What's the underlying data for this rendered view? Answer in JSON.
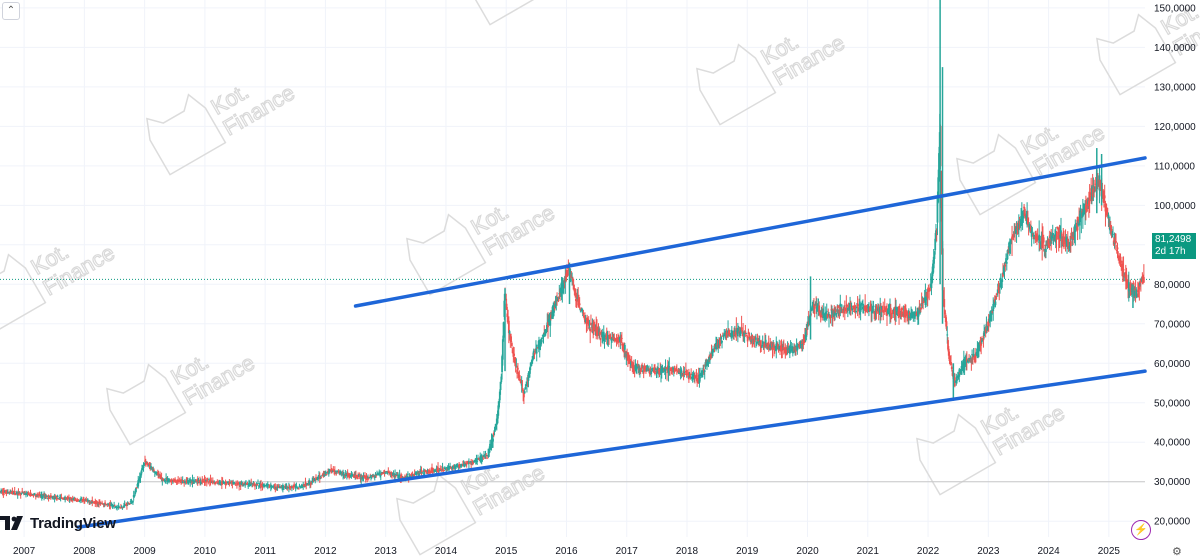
{
  "branding": {
    "logo_text": "TradingView",
    "watermark_text": "Kot. Finance"
  },
  "price_badge": {
    "value": "81,2498",
    "countdown": "2d 17h",
    "color": "#0b9981"
  },
  "colors": {
    "up": "#26a69a",
    "down": "#ef5350",
    "trendline": "#1e66d8",
    "grid": "#f0f3fa"
  },
  "icons": {
    "collapse": "chevron-up-icon",
    "alert": "lightning-icon",
    "settings": "gear-icon"
  },
  "chart_data": {
    "type": "candlestick",
    "title": "",
    "xlabel": "",
    "ylabel": "",
    "x_ticks": [
      "2007",
      "2008",
      "2009",
      "2010",
      "2011",
      "2012",
      "2013",
      "2014",
      "2015",
      "2016",
      "2017",
      "2018",
      "2019",
      "2020",
      "2021",
      "2022",
      "2023",
      "2024",
      "2025"
    ],
    "y_ticks": [
      "20,0000",
      "30,0000",
      "40,0000",
      "50,0000",
      "60,0000",
      "70,0000",
      "80,0000",
      "90,0000",
      "100,0000",
      "110,0000",
      "120,0000",
      "130,0000",
      "140,0000",
      "150,0000"
    ],
    "ylim": [
      16,
      152
    ],
    "xlim": [
      2006.6,
      2025.6
    ],
    "last_price": 81.2498,
    "horizontal_line": 30,
    "price_path": [
      [
        2006.6,
        27.5
      ],
      [
        2007.0,
        27.0
      ],
      [
        2007.5,
        26.0
      ],
      [
        2008.0,
        25.2
      ],
      [
        2008.3,
        24.5
      ],
      [
        2008.6,
        23.5
      ],
      [
        2008.8,
        25.0
      ],
      [
        2009.0,
        35.0
      ],
      [
        2009.15,
        33.0
      ],
      [
        2009.3,
        30.5
      ],
      [
        2009.6,
        30.0
      ],
      [
        2010.0,
        30.2
      ],
      [
        2010.5,
        29.5
      ],
      [
        2011.0,
        29.0
      ],
      [
        2011.3,
        28.5
      ],
      [
        2011.6,
        28.8
      ],
      [
        2011.9,
        31.0
      ],
      [
        2012.1,
        33.0
      ],
      [
        2012.4,
        31.5
      ],
      [
        2012.7,
        31.0
      ],
      [
        2013.0,
        32.5
      ],
      [
        2013.3,
        31.0
      ],
      [
        2013.6,
        32.5
      ],
      [
        2013.9,
        33.0
      ],
      [
        2014.2,
        34.0
      ],
      [
        2014.45,
        35.0
      ],
      [
        2014.7,
        37.0
      ],
      [
        2014.85,
        45.0
      ],
      [
        2014.93,
        58.0
      ],
      [
        2014.98,
        78.0
      ],
      [
        2015.05,
        68.0
      ],
      [
        2015.15,
        60.0
      ],
      [
        2015.3,
        52.0
      ],
      [
        2015.45,
        62.0
      ],
      [
        2015.6,
        66.0
      ],
      [
        2015.75,
        72.0
      ],
      [
        2015.95,
        80.0
      ],
      [
        2016.05,
        84.0
      ],
      [
        2016.15,
        77.0
      ],
      [
        2016.35,
        70.0
      ],
      [
        2016.6,
        67.0
      ],
      [
        2016.9,
        66.0
      ],
      [
        2017.1,
        59.0
      ],
      [
        2017.4,
        58.0
      ],
      [
        2017.7,
        58.5
      ],
      [
        2018.0,
        57.0
      ],
      [
        2018.2,
        56.0
      ],
      [
        2018.4,
        62.0
      ],
      [
        2018.6,
        67.0
      ],
      [
        2018.9,
        68.0
      ],
      [
        2019.2,
        65.0
      ],
      [
        2019.5,
        64.0
      ],
      [
        2019.8,
        63.0
      ],
      [
        2019.95,
        66.0
      ],
      [
        2020.1,
        75.0
      ],
      [
        2020.3,
        72.0
      ],
      [
        2020.6,
        74.0
      ],
      [
        2020.9,
        74.0
      ],
      [
        2021.2,
        73.5
      ],
      [
        2021.5,
        73.0
      ],
      [
        2021.8,
        72.0
      ],
      [
        2022.05,
        79.0
      ],
      [
        2022.15,
        95.0
      ],
      [
        2022.2,
        120.0
      ],
      [
        2022.25,
        78.0
      ],
      [
        2022.35,
        62.0
      ],
      [
        2022.45,
        55.0
      ],
      [
        2022.6,
        60.0
      ],
      [
        2022.8,
        62.0
      ],
      [
        2023.0,
        70.0
      ],
      [
        2023.2,
        80.0
      ],
      [
        2023.4,
        92.0
      ],
      [
        2023.6,
        98.0
      ],
      [
        2023.75,
        92.0
      ],
      [
        2023.95,
        90.0
      ],
      [
        2024.15,
        93.0
      ],
      [
        2024.35,
        90.0
      ],
      [
        2024.55,
        98.0
      ],
      [
        2024.75,
        104.0
      ],
      [
        2024.85,
        106.0
      ],
      [
        2025.0,
        96.0
      ],
      [
        2025.15,
        88.0
      ],
      [
        2025.3,
        80.0
      ],
      [
        2025.45,
        77.5
      ],
      [
        2025.55,
        81.2498
      ]
    ],
    "spikes": [
      {
        "x": 2014.98,
        "high": 79.0,
        "low": 58.0
      },
      {
        "x": 2016.05,
        "high": 85.5,
        "low": 75.0
      },
      {
        "x": 2020.05,
        "high": 82.0,
        "low": 66.0
      },
      {
        "x": 2022.2,
        "high": 152.0,
        "low": 80.0
      },
      {
        "x": 2022.24,
        "high": 135.0,
        "low": 70.0
      },
      {
        "x": 2022.42,
        "high": 60.0,
        "low": 50.5
      },
      {
        "x": 2024.8,
        "high": 114.5,
        "low": 98.0
      },
      {
        "x": 2024.88,
        "high": 113.0,
        "low": 100.0
      },
      {
        "x": 2025.4,
        "high": 80.0,
        "low": 74.0
      }
    ],
    "trendlines": [
      {
        "name": "",
        "x1": 2012.5,
        "y1": 74.5,
        "x2": 2025.6,
        "y2": 112.0
      },
      {
        "name": "",
        "x1": 2007.9,
        "y1": 18.5,
        "x2": 2025.6,
        "y2": 58.0
      }
    ]
  }
}
